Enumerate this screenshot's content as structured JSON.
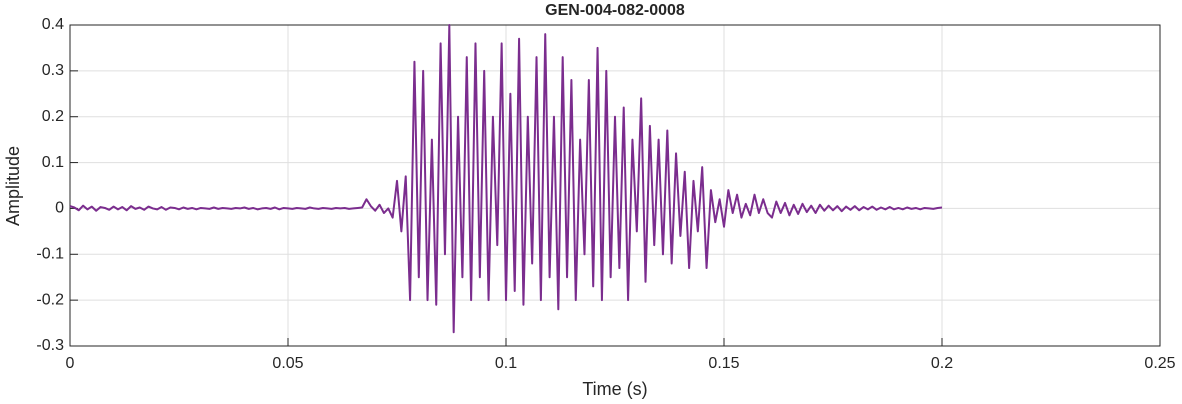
{
  "chart_data": {
    "type": "line",
    "title": "GEN-004-082-0008",
    "x_label": "Time (s)",
    "y_label": "Amplitude",
    "color": "#7b2d8e",
    "grid": true,
    "xlim": [
      0,
      0.25
    ],
    "xticks": [
      0,
      0.05,
      0.1,
      0.15,
      0.2,
      0.25
    ],
    "ylim": [
      -0.3,
      0.4
    ],
    "yticks": [
      -0.3,
      -0.2,
      -0.1,
      0,
      0.1,
      0.2,
      0.3,
      0.4
    ],
    "x": [
      0,
      0.001,
      0.002,
      0.003,
      0.004,
      0.005,
      0.006,
      0.007,
      0.008,
      0.009,
      0.01,
      0.011,
      0.012,
      0.013,
      0.014,
      0.015,
      0.016,
      0.017,
      0.018,
      0.019,
      0.02,
      0.021,
      0.022,
      0.023,
      0.024,
      0.025,
      0.026,
      0.027,
      0.028,
      0.029,
      0.03,
      0.031,
      0.032,
      0.033,
      0.034,
      0.035,
      0.036,
      0.037,
      0.038,
      0.039,
      0.04,
      0.041,
      0.042,
      0.043,
      0.044,
      0.045,
      0.046,
      0.047,
      0.048,
      0.049,
      0.05,
      0.051,
      0.052,
      0.053,
      0.054,
      0.055,
      0.056,
      0.057,
      0.058,
      0.059,
      0.06,
      0.061,
      0.062,
      0.063,
      0.064,
      0.065,
      0.066,
      0.067,
      0.068,
      0.069,
      0.07,
      0.071,
      0.072,
      0.073,
      0.074,
      0.075,
      0.076,
      0.077,
      0.078,
      0.079,
      0.08,
      0.081,
      0.082,
      0.083,
      0.084,
      0.085,
      0.086,
      0.087,
      0.088,
      0.089,
      0.09,
      0.091,
      0.092,
      0.093,
      0.094,
      0.095,
      0.096,
      0.097,
      0.098,
      0.099,
      0.1,
      0.101,
      0.102,
      0.103,
      0.104,
      0.105,
      0.106,
      0.107,
      0.108,
      0.109,
      0.11,
      0.111,
      0.112,
      0.113,
      0.114,
      0.115,
      0.116,
      0.117,
      0.118,
      0.119,
      0.12,
      0.121,
      0.122,
      0.123,
      0.124,
      0.125,
      0.126,
      0.127,
      0.128,
      0.129,
      0.13,
      0.131,
      0.132,
      0.133,
      0.134,
      0.135,
      0.136,
      0.137,
      0.138,
      0.139,
      0.14,
      0.141,
      0.142,
      0.143,
      0.144,
      0.145,
      0.146,
      0.147,
      0.148,
      0.149,
      0.15,
      0.151,
      0.152,
      0.153,
      0.154,
      0.155,
      0.156,
      0.157,
      0.158,
      0.159,
      0.16,
      0.161,
      0.162,
      0.163,
      0.164,
      0.165,
      0.166,
      0.167,
      0.168,
      0.169,
      0.17,
      0.171,
      0.172,
      0.173,
      0.174,
      0.175,
      0.176,
      0.177,
      0.178,
      0.179,
      0.18,
      0.181,
      0.182,
      0.183,
      0.184,
      0.185,
      0.186,
      0.187,
      0.188,
      0.189,
      0.19,
      0.191,
      0.192,
      0.193,
      0.194,
      0.195,
      0.196,
      0.197,
      0.198,
      0.199,
      0.2
    ],
    "values": [
      0.005,
      0.002,
      -0.004,
      0.006,
      -0.002,
      0.004,
      -0.005,
      0.003,
      0.001,
      -0.003,
      0.004,
      -0.002,
      0.003,
      -0.004,
      0.005,
      -0.001,
      0.002,
      -0.003,
      0.004,
      0.0,
      -0.002,
      0.003,
      -0.003,
      0.002,
      0.001,
      -0.002,
      0.002,
      -0.001,
      0.001,
      -0.002,
      0.001,
      0.0,
      -0.001,
      0.002,
      -0.001,
      0.001,
      0.0,
      -0.001,
      0.001,
      0.0,
      0.002,
      -0.001,
      0.001,
      -0.002,
      0.0,
      0.001,
      -0.001,
      0.002,
      -0.002,
      0.001,
      0.0,
      -0.001,
      0.001,
      0.0,
      -0.001,
      0.002,
      0.0,
      -0.001,
      0.001,
      0.0,
      -0.001,
      0.001,
      0.0,
      0.001,
      -0.001,
      0.0,
      0.001,
      0.002,
      0.02,
      0.005,
      -0.005,
      0.008,
      -0.01,
      0.0,
      -0.02,
      0.06,
      -0.05,
      0.07,
      -0.2,
      0.32,
      -0.15,
      0.3,
      -0.2,
      0.15,
      -0.21,
      0.36,
      -0.1,
      0.4,
      -0.27,
      0.2,
      -0.15,
      0.33,
      -0.2,
      0.36,
      -0.15,
      0.3,
      -0.2,
      0.2,
      -0.08,
      0.36,
      -0.2,
      0.25,
      -0.18,
      0.37,
      -0.21,
      0.2,
      -0.12,
      0.33,
      -0.2,
      0.38,
      -0.15,
      0.2,
      -0.22,
      0.33,
      -0.15,
      0.28,
      -0.2,
      0.15,
      -0.1,
      0.28,
      -0.17,
      0.35,
      -0.2,
      0.3,
      -0.15,
      0.2,
      -0.13,
      0.22,
      -0.2,
      0.15,
      -0.05,
      0.24,
      -0.16,
      0.18,
      -0.08,
      0.15,
      -0.1,
      0.17,
      -0.12,
      0.12,
      -0.06,
      0.08,
      -0.13,
      0.06,
      -0.05,
      0.09,
      -0.13,
      0.04,
      -0.03,
      0.02,
      -0.04,
      0.04,
      -0.01,
      0.03,
      -0.02,
      0.01,
      -0.015,
      0.03,
      -0.01,
      0.02,
      -0.01,
      -0.02,
      0.015,
      -0.01,
      0.012,
      -0.015,
      0.008,
      -0.012,
      0.01,
      -0.008,
      0.006,
      -0.01,
      0.008,
      -0.005,
      0.006,
      -0.004,
      0.005,
      -0.006,
      0.004,
      -0.003,
      0.005,
      -0.004,
      0.003,
      -0.002,
      0.004,
      -0.003,
      0.002,
      -0.002,
      0.003,
      -0.002,
      0.001,
      -0.002,
      0.002,
      -0.001,
      0.001,
      -0.002,
      0.001,
      0.0,
      -0.001,
      0.001,
      0.002
    ]
  }
}
